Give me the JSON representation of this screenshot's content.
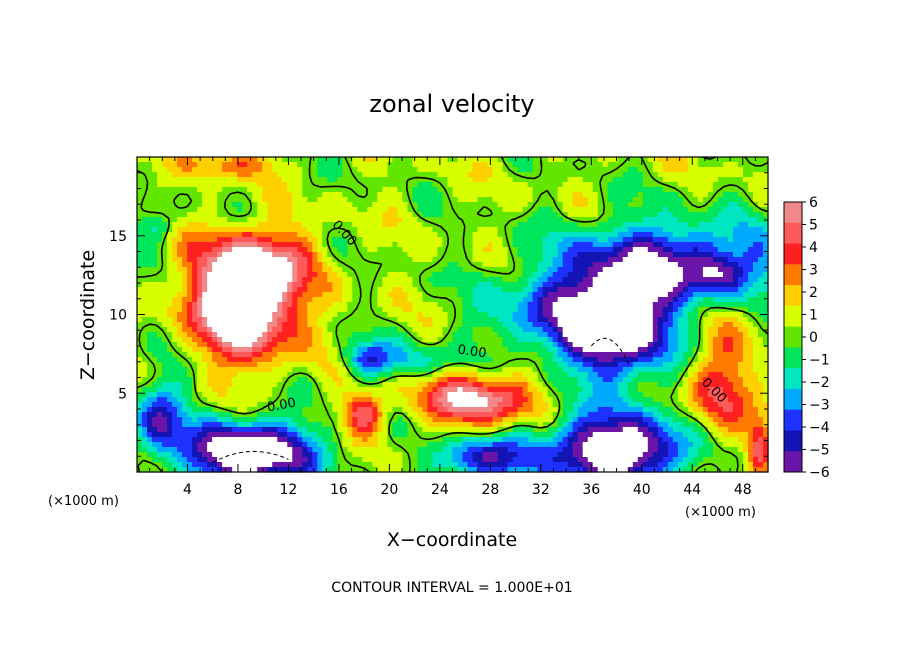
{
  "chart_data": {
    "type": "heatmap",
    "title": "zonal velocity",
    "xlabel": "X−coordinate",
    "ylabel": "Z−coordinate",
    "x_unit": "(×1000 m)",
    "z_unit": "(×1000 m)",
    "xlim": [
      0,
      50
    ],
    "ylim": [
      0,
      20
    ],
    "x_ticks": [
      4,
      8,
      12,
      16,
      20,
      24,
      28,
      32,
      36,
      40,
      44,
      48
    ],
    "y_ticks": [
      5,
      10,
      15
    ],
    "colorbar": {
      "min": -6,
      "max": 6,
      "labels": [
        "6",
        "5",
        "4",
        "3",
        "2",
        "1",
        "0",
        "−1",
        "−2",
        "−3",
        "−4",
        "−5",
        "−6"
      ],
      "colors": [
        "#f08a8a",
        "#ff5a5a",
        "#ff2020",
        "#ff7a00",
        "#ffd000",
        "#d8ff00",
        "#62e600",
        "#00e65c",
        "#00e6c0",
        "#00aaff",
        "#1e32ff",
        "#1414b4",
        "#6a14a8"
      ]
    },
    "contour_labels": [
      "0.00",
      "0.00",
      "0.00",
      "0.00"
    ],
    "note": "CONTOUR INTERVAL = 1.000E+01",
    "features": [
      {
        "kind": "core",
        "sign": "positive",
        "x": 8.5,
        "z": 10.5,
        "rx": 4.0,
        "rz": 3.2,
        "amp": 9
      },
      {
        "kind": "band",
        "sign": "positive",
        "x": 9.5,
        "z": 13.5,
        "rx": 4.5,
        "rz": 2.0,
        "amp": 4
      },
      {
        "kind": "core",
        "sign": "positive",
        "x": 27,
        "z": 4.6,
        "rx": 4.5,
        "rz": 1.6,
        "amp": 6
      },
      {
        "kind": "core",
        "sign": "positive",
        "x": 18,
        "z": 3.7,
        "rx": 1.6,
        "rz": 1.3,
        "amp": 4.5
      },
      {
        "kind": "band",
        "sign": "positive",
        "x": 46,
        "z": 5.0,
        "rx": 2.5,
        "rz": 4.0,
        "amp": 4
      },
      {
        "kind": "band",
        "sign": "positive",
        "x": 49.3,
        "z": 1.5,
        "rx": 0.9,
        "rz": 1.5,
        "amp": 4.5
      },
      {
        "kind": "band",
        "sign": "positive",
        "x": 7.5,
        "z": 19.5,
        "rx": 3.5,
        "rz": 0.9,
        "amp": 2.5
      },
      {
        "kind": "core",
        "sign": "negative",
        "x": 38,
        "z": 9.5,
        "rx": 4.5,
        "rz": 3.5,
        "amp": 9
      },
      {
        "kind": "band",
        "sign": "negative",
        "x": 43,
        "z": 13.5,
        "rx": 9,
        "rz": 2.5,
        "amp": 5
      },
      {
        "kind": "band",
        "sign": "negative",
        "x": 32,
        "z": 10,
        "rx": 5,
        "rz": 2.5,
        "amp": 3
      },
      {
        "kind": "core",
        "sign": "negative",
        "x": 9,
        "z": 1.2,
        "rx": 5,
        "rz": 2.0,
        "amp": 9
      },
      {
        "kind": "core",
        "sign": "negative",
        "x": 38,
        "z": 1.4,
        "rx": 6,
        "rz": 2.2,
        "amp": 8.5
      },
      {
        "kind": "band",
        "sign": "negative",
        "x": 27,
        "z": 0.8,
        "rx": 3.5,
        "rz": 1.3,
        "amp": 5
      },
      {
        "kind": "band",
        "sign": "negative",
        "x": 1.8,
        "z": 3.5,
        "rx": 2.0,
        "rz": 2.5,
        "amp": 5
      },
      {
        "kind": "band",
        "sign": "negative",
        "x": 18.2,
        "z": 7.2,
        "rx": 1.8,
        "rz": 1.1,
        "amp": 4
      },
      {
        "kind": "band",
        "sign": "negative",
        "x": 22,
        "z": 7.0,
        "rx": 3.0,
        "rz": 1.2,
        "amp": 2.5
      },
      {
        "kind": "band",
        "sign": "negative",
        "x": 1.5,
        "z": 15.5,
        "rx": 1.5,
        "rz": 1.0,
        "amp": 2
      },
      {
        "kind": "band",
        "sign": "negative",
        "x": 46,
        "z": 12.5,
        "rx": 2.0,
        "rz": 1.2,
        "amp": 3
      }
    ]
  }
}
